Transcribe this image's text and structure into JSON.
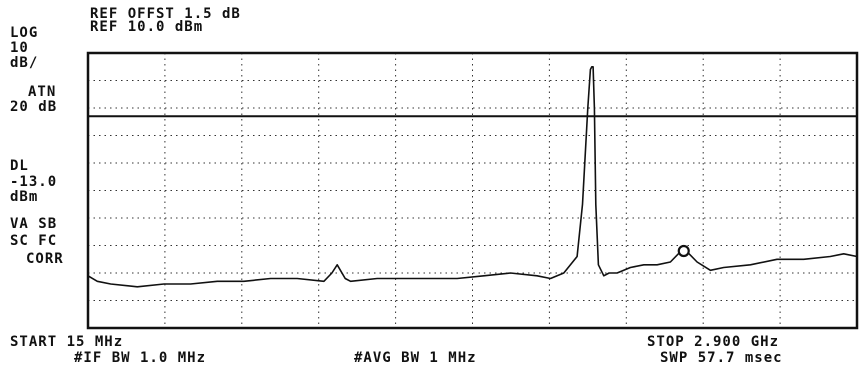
{
  "header": {
    "ref_offset": "REF OFFST 1.5 dB",
    "ref_level": "REF 10.0 dBm"
  },
  "left_panel": {
    "scale_lines": [
      "LOG",
      "10",
      "dB/",
      "ATN",
      "20 dB"
    ],
    "display_line_lines": [
      "DL",
      "-13.0",
      "dBm"
    ],
    "mode_lines": [
      "VA SB",
      "SC FC",
      "CORR"
    ]
  },
  "footer": {
    "start": "START 15 MHz",
    "stop": "STOP 2.900 GHz",
    "if_bw": "#IF BW 1.0 MHz",
    "avg_bw": "#AVG BW 1 MHz",
    "sweep": "SWP 57.7 msec"
  },
  "chart_data": {
    "type": "line",
    "x_unit": "GHz",
    "y_unit": "dBm",
    "xlim": [
      0.015,
      2.9
    ],
    "ylim": [
      -90,
      10
    ],
    "grid": true,
    "grid_divisions": {
      "x": 10,
      "y": 10
    },
    "display_line_dbm": -13.0,
    "marker": {
      "x": 2.25,
      "y": -62
    },
    "series": [
      {
        "color": "#111111",
        "x": [
          0.015,
          0.05,
          0.1,
          0.2,
          0.3,
          0.4,
          0.5,
          0.6,
          0.7,
          0.8,
          0.9,
          0.93,
          0.95,
          0.98,
          1.0,
          1.1,
          1.2,
          1.3,
          1.4,
          1.5,
          1.6,
          1.7,
          1.75,
          1.8,
          1.85,
          1.87,
          1.89,
          1.9,
          1.905,
          1.91,
          1.915,
          1.92,
          1.93,
          1.95,
          1.97,
          2.0,
          2.05,
          2.1,
          2.15,
          2.2,
          2.25,
          2.3,
          2.35,
          2.4,
          2.5,
          2.6,
          2.7,
          2.8,
          2.85,
          2.9
        ],
        "y": [
          -71,
          -73,
          -74,
          -75,
          -74,
          -74,
          -73,
          -73,
          -72,
          -72,
          -73,
          -70,
          -67,
          -72,
          -73,
          -72,
          -72,
          -72,
          -72,
          -71,
          -70,
          -71,
          -72,
          -70,
          -64,
          -45,
          -10,
          4,
          5,
          5,
          -10,
          -45,
          -67,
          -71,
          -70,
          -70,
          -68,
          -67,
          -67,
          -66,
          -61,
          -66,
          -69,
          -68,
          -67,
          -65,
          -65,
          -64,
          -63,
          -64
        ]
      }
    ]
  }
}
